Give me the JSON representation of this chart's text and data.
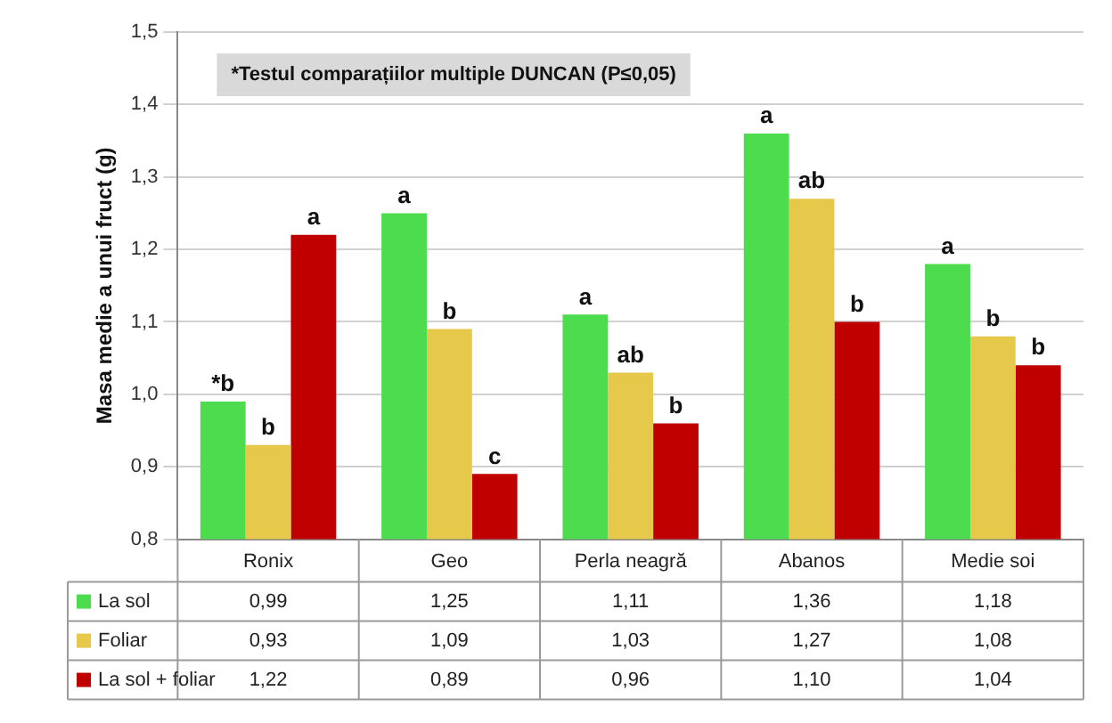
{
  "chart_data": {
    "type": "bar",
    "ylabel": "Masa medie a unui fruct (g)",
    "categories": [
      "Ronix",
      "Geo",
      "Perla neagră",
      "Abanos",
      "Medie soi"
    ],
    "series": [
      {
        "name": "La sol",
        "color": "#4ddc4d",
        "values": [
          0.99,
          1.25,
          1.11,
          1.36,
          1.18
        ],
        "value_labels": [
          "0,99",
          "1,25",
          "1,11",
          "1,36",
          "1,18"
        ]
      },
      {
        "name": "Foliar",
        "color": "#e6c84a",
        "values": [
          0.93,
          1.09,
          1.03,
          1.27,
          1.08
        ],
        "value_labels": [
          "0,93",
          "1,09",
          "1,03",
          "1,27",
          "1,08"
        ]
      },
      {
        "name": "La sol + foliar",
        "color": "#c00000",
        "values": [
          1.22,
          0.89,
          0.96,
          1.1,
          1.04
        ],
        "value_labels": [
          "1,22",
          "0,89",
          "0,96",
          "1,10",
          "1,04"
        ]
      }
    ],
    "ylim": [
      0.8,
      1.5
    ],
    "yticks": [
      {
        "value": 0.8,
        "label": "0,8"
      },
      {
        "value": 0.9,
        "label": "0,9"
      },
      {
        "value": 1.0,
        "label": "1,0"
      },
      {
        "value": 1.1,
        "label": "1,1"
      },
      {
        "value": 1.2,
        "label": "1,2"
      },
      {
        "value": 1.3,
        "label": "1,3"
      },
      {
        "value": 1.4,
        "label": "1,4"
      },
      {
        "value": 1.5,
        "label": "1,5"
      }
    ],
    "grid": "y",
    "legend": "bottom",
    "annotations": [
      "*Testul comparațiilor multiple DUNCAN (P≤0,05)",
      "*b",
      "b",
      "a",
      "a",
      "b",
      "c",
      "a",
      "ab",
      "b",
      "a",
      "ab",
      "b",
      "a",
      "b",
      "b"
    ]
  }
}
